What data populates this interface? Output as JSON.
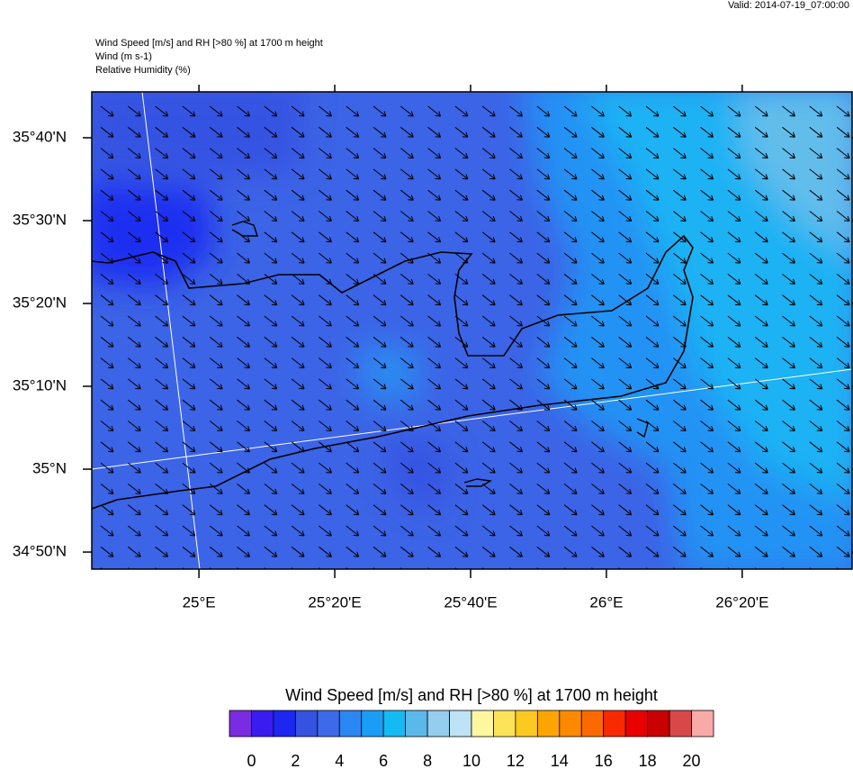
{
  "header": {
    "valid": "Valid: 2014-07-19_07:00:00",
    "lines": [
      "Wind Speed [m/s] and RH [>80 %] at 1700 m height",
      "Wind   (m s-1)",
      "Relative Humidity   (%)"
    ]
  },
  "map": {
    "xlim": [
      24.737,
      26.603
    ],
    "ylim": [
      34.799,
      35.759
    ],
    "xticks": [
      {
        "value": 25,
        "label": "25°E"
      },
      {
        "value": 25.3333,
        "label": "25°20'E"
      },
      {
        "value": 25.6667,
        "label": "25°40'E"
      },
      {
        "value": 26,
        "label": "26°E"
      },
      {
        "value": 26.3333,
        "label": "26°20'E"
      }
    ],
    "yticks": [
      {
        "value": 35.6667,
        "label": "35°40'N"
      },
      {
        "value": 35.5,
        "label": "35°30'N"
      },
      {
        "value": 35.3333,
        "label": "35°20'N"
      },
      {
        "value": 35.1667,
        "label": "35°10'N"
      },
      {
        "value": 35,
        "label": "35°N"
      },
      {
        "value": 34.8333,
        "label": "34°50'N"
      }
    ]
  },
  "colorbar": {
    "title": "Wind Speed [m/s] and RH [>80 %] at 1700 m height",
    "lim": [
      -1,
      21
    ],
    "colors": [
      "#7b2be0",
      "#3a1cf0",
      "#1c27f0",
      "#3552e0",
      "#3d6ae8",
      "#2b87f2",
      "#1a9ef5",
      "#16baf2",
      "#5ab9ea",
      "#95cdee",
      "#bde3f4",
      "#fff7a0",
      "#fde35a",
      "#fdc822",
      "#fca500",
      "#fb8a00",
      "#fb6a00",
      "#f82a00",
      "#e80000",
      "#c80000",
      "#d94848",
      "#f8aaa8"
    ],
    "ticks": [
      0,
      2,
      4,
      6,
      8,
      10,
      12,
      14,
      16,
      18,
      20
    ]
  }
}
